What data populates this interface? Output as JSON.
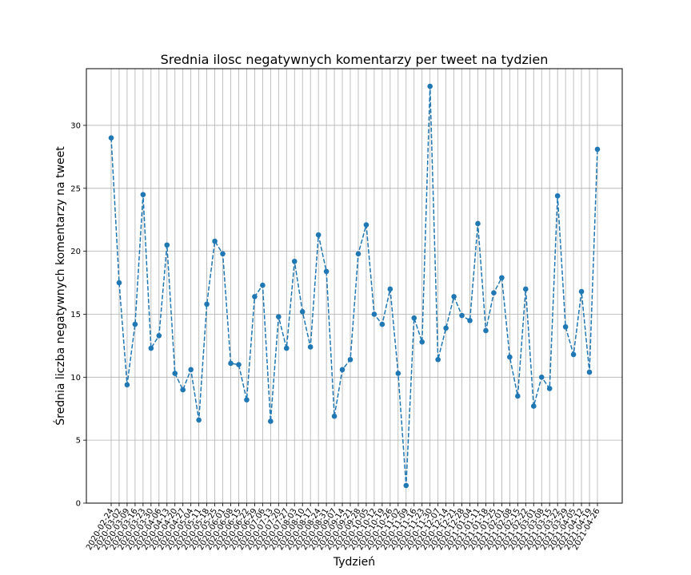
{
  "chart_data": {
    "type": "line",
    "title": "Srednia ilosc negatywnych komentarzy per tweet na tydzien",
    "xlabel": "Tydzień",
    "ylabel": "Średnia liczba negatywnych komentarzy na tweet",
    "ylim": [
      0,
      34.5
    ],
    "yticks": [
      0,
      5,
      10,
      15,
      20,
      25,
      30
    ],
    "grid": true,
    "line_style": "dashed",
    "marker": "circle",
    "color": "#1f77b4",
    "x": [
      "2020-02-24",
      "2020-03-02",
      "2020-03-09",
      "2020-03-16",
      "2020-03-23",
      "2020-03-30",
      "2020-04-06",
      "2020-04-13",
      "2020-04-20",
      "2020-04-27",
      "2020-05-04",
      "2020-05-11",
      "2020-05-18",
      "2020-05-25",
      "2020-06-01",
      "2020-06-08",
      "2020-06-15",
      "2020-06-22",
      "2020-06-29",
      "2020-07-06",
      "2020-07-13",
      "2020-07-20",
      "2020-07-27",
      "2020-08-03",
      "2020-08-10",
      "2020-08-17",
      "2020-08-24",
      "2020-08-31",
      "2020-09-07",
      "2020-09-14",
      "2020-09-21",
      "2020-09-28",
      "2020-10-05",
      "2020-10-12",
      "2020-10-19",
      "2020-10-26",
      "2020-11-02",
      "2020-11-09",
      "2020-11-16",
      "2020-11-23",
      "2020-11-30",
      "2020-12-07",
      "2020-12-14",
      "2020-12-21",
      "2020-12-28",
      "2021-01-04",
      "2021-01-11",
      "2021-01-18",
      "2021-01-25",
      "2021-02-01",
      "2021-02-08",
      "2021-02-15",
      "2021-02-22",
      "2021-03-01",
      "2021-03-08",
      "2021-03-15",
      "2021-03-22",
      "2021-03-29",
      "2021-04-05",
      "2021-04-12",
      "2021-04-19",
      "2021-04-26"
    ],
    "y": [
      29.0,
      17.5,
      9.4,
      14.2,
      24.5,
      12.3,
      13.3,
      20.5,
      10.3,
      9.0,
      10.6,
      6.6,
      15.8,
      20.8,
      19.8,
      11.1,
      11.0,
      8.2,
      16.4,
      17.3,
      6.5,
      14.8,
      12.3,
      19.2,
      15.2,
      12.4,
      21.3,
      18.4,
      6.9,
      10.6,
      11.4,
      19.8,
      22.1,
      15.0,
      14.2,
      17.0,
      10.3,
      1.4,
      14.7,
      12.8,
      33.1,
      11.4,
      13.9,
      16.4,
      14.9,
      14.5,
      22.2,
      13.7,
      16.7,
      17.9,
      11.6,
      8.5,
      17.0,
      7.7,
      10.0,
      9.1,
      24.4,
      14.0,
      11.8,
      16.8,
      10.4,
      28.1
    ]
  }
}
